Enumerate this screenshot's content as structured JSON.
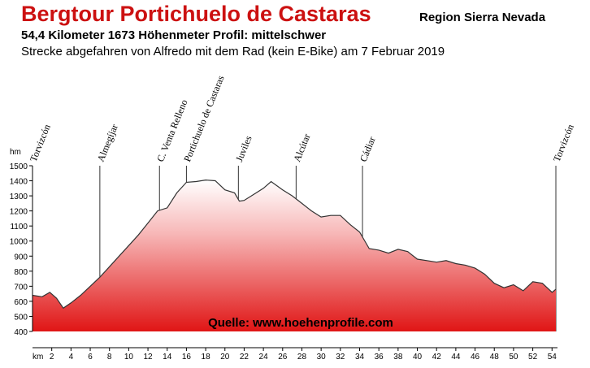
{
  "chart_data": {
    "type": "area",
    "title": "Bergtour Portichuelo de Castaras",
    "region": "Region Sierra Nevada",
    "stats": "54,4 Kilometer  1673 Höhenmeter  Profil: mittelschwer",
    "subtitle": "Strecke abgefahren von Alfredo mit dem Rad (kein E-Bike) am 7 Februar 2019",
    "y_label": "hm",
    "x_label": "km",
    "annotation": "Quelle: www.hoehenprofile.com",
    "xlim": [
      0,
      54.4
    ],
    "ylim": [
      400,
      1500
    ],
    "xticks": [
      2,
      4,
      6,
      8,
      10,
      12,
      14,
      16,
      18,
      20,
      22,
      24,
      26,
      28,
      30,
      32,
      34,
      36,
      38,
      40,
      42,
      44,
      46,
      48,
      50,
      52,
      54
    ],
    "yticks": [
      400,
      500,
      600,
      700,
      800,
      900,
      1000,
      1100,
      1200,
      1300,
      1400,
      1500
    ],
    "color": "#e02020",
    "line_color": "#333333",
    "x": [
      0,
      1,
      1.8,
      2.5,
      3.2,
      4,
      5,
      6,
      7,
      8,
      9,
      10,
      11,
      12,
      13,
      14,
      15,
      16,
      17,
      18,
      19,
      20,
      21,
      21.5,
      22,
      23,
      24,
      24.8,
      26,
      27,
      28,
      29,
      30,
      31,
      32,
      33,
      34,
      35,
      36,
      37,
      38,
      39,
      40,
      41,
      42,
      43,
      44,
      45,
      46,
      47,
      48,
      49,
      50,
      51,
      52,
      53,
      54,
      54.4
    ],
    "values": [
      640,
      630,
      660,
      620,
      555,
      590,
      640,
      700,
      760,
      830,
      900,
      970,
      1040,
      1120,
      1200,
      1220,
      1320,
      1390,
      1395,
      1405,
      1400,
      1340,
      1320,
      1265,
      1270,
      1310,
      1350,
      1395,
      1340,
      1300,
      1250,
      1200,
      1160,
      1170,
      1170,
      1110,
      1060,
      950,
      940,
      920,
      945,
      930,
      880,
      870,
      860,
      870,
      850,
      840,
      820,
      780,
      720,
      690,
      710,
      670,
      730,
      720,
      660,
      680
    ],
    "waypoints": [
      {
        "label": "Torvizcón",
        "km": 0
      },
      {
        "label": "Almegíjar",
        "km": 7
      },
      {
        "label": "C. Venta Relleno",
        "km": 13.2
      },
      {
        "label": "Portichuelo de Castaras",
        "km": 16
      },
      {
        "label": "Juviles",
        "km": 21.4
      },
      {
        "label": "Alcútar",
        "km": 27.4
      },
      {
        "label": "Cádiar",
        "km": 34.3
      },
      {
        "label": "Torvizcón",
        "km": 54.4
      }
    ]
  }
}
